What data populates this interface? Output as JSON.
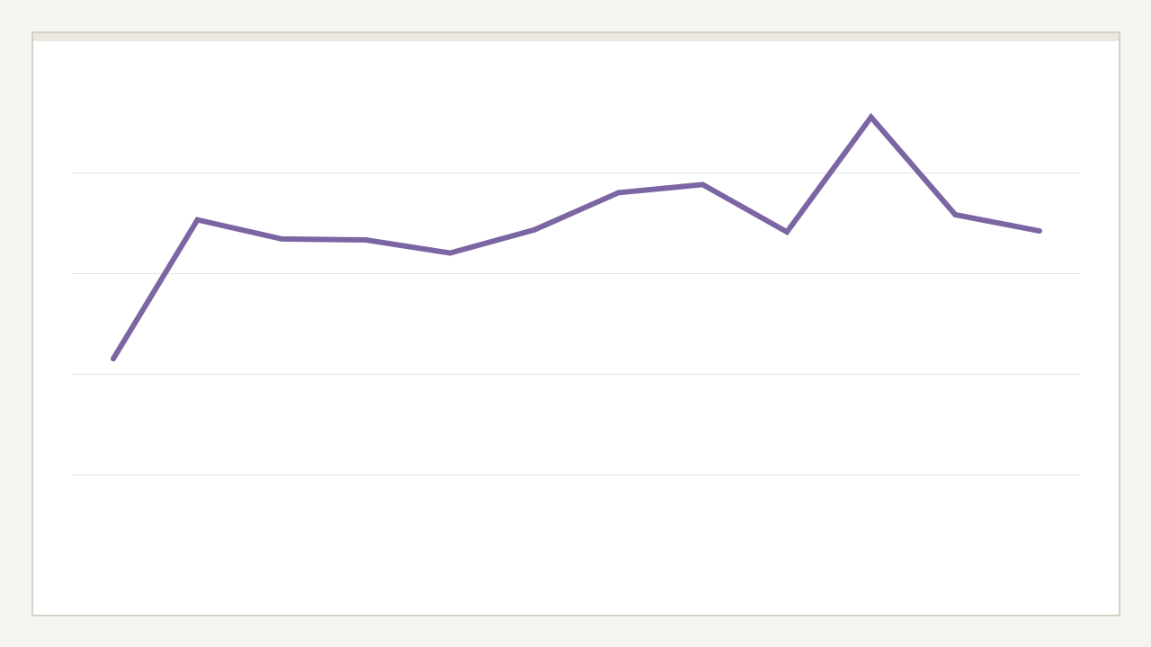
{
  "colors": {
    "page_background": "#f5f4ef",
    "card_background": "#ffffff",
    "card_border": "#d6d1c6",
    "card_topbar": "#ebe8e0",
    "gridline": "#e3e3e3",
    "series_line": "#7b66a3"
  },
  "chart_data": {
    "type": "line",
    "title": "",
    "xlabel": "",
    "ylabel": "",
    "grid": true,
    "x": [
      1,
      2,
      3,
      4,
      5,
      6,
      7,
      8,
      9,
      10,
      11,
      12
    ],
    "ylim": [
      0,
      5
    ],
    "yticks": [
      1,
      2,
      3,
      4
    ],
    "series": [
      {
        "values": [
          2.15,
          3.53,
          3.34,
          3.33,
          3.2,
          3.43,
          3.8,
          3.88,
          3.41,
          4.55,
          3.58,
          3.42
        ]
      }
    ]
  }
}
